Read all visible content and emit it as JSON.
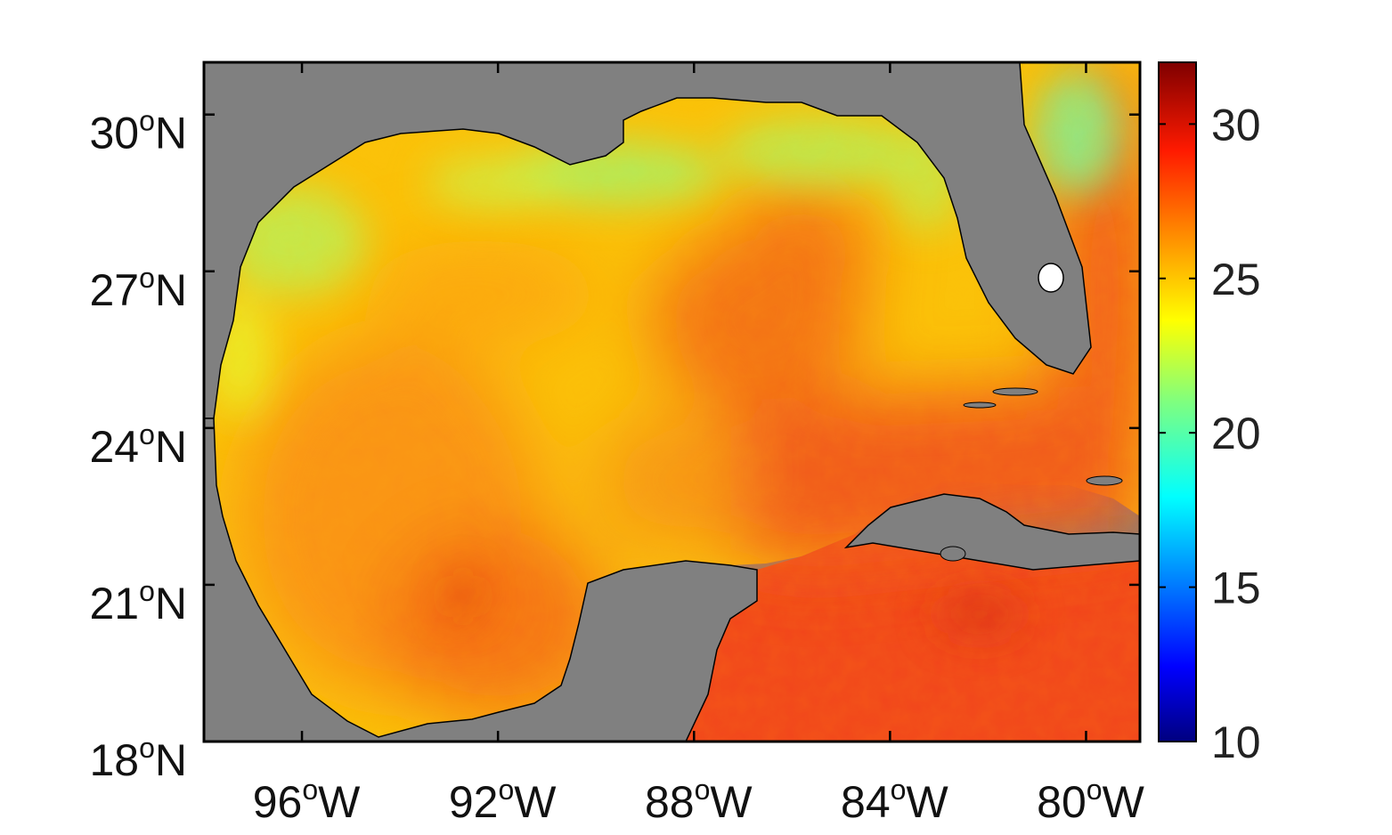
{
  "map": {
    "lon_range": [
      -98,
      -78.9
    ],
    "lat_range": [
      18,
      31
    ],
    "land_color": "#808080",
    "coastline_color": "#000000",
    "x_ticks": [
      {
        "value": -96,
        "num": "96",
        "sup": "o",
        "hemi": "W"
      },
      {
        "value": -92,
        "num": "92",
        "sup": "o",
        "hemi": "W"
      },
      {
        "value": -88,
        "num": "88",
        "sup": "o",
        "hemi": "W"
      },
      {
        "value": -84,
        "num": "84",
        "sup": "o",
        "hemi": "W"
      },
      {
        "value": -80,
        "num": "80",
        "sup": "o",
        "hemi": "W"
      }
    ],
    "y_ticks": [
      {
        "value": 30,
        "num": "30",
        "sup": "o",
        "hemi": "N"
      },
      {
        "value": 27,
        "num": "27",
        "sup": "o",
        "hemi": "N"
      },
      {
        "value": 24,
        "num": "24",
        "sup": "o",
        "hemi": "N"
      },
      {
        "value": 21,
        "num": "21",
        "sup": "o",
        "hemi": "N"
      },
      {
        "value": 18,
        "num": "18",
        "sup": "o",
        "hemi": "N"
      }
    ]
  },
  "colorbar": {
    "min": 10,
    "max": 32,
    "colormap": "jet",
    "tick_labels": [
      "30",
      "25",
      "20",
      "15",
      "10"
    ],
    "tick_values": [
      30,
      25,
      20,
      15,
      10
    ]
  }
}
